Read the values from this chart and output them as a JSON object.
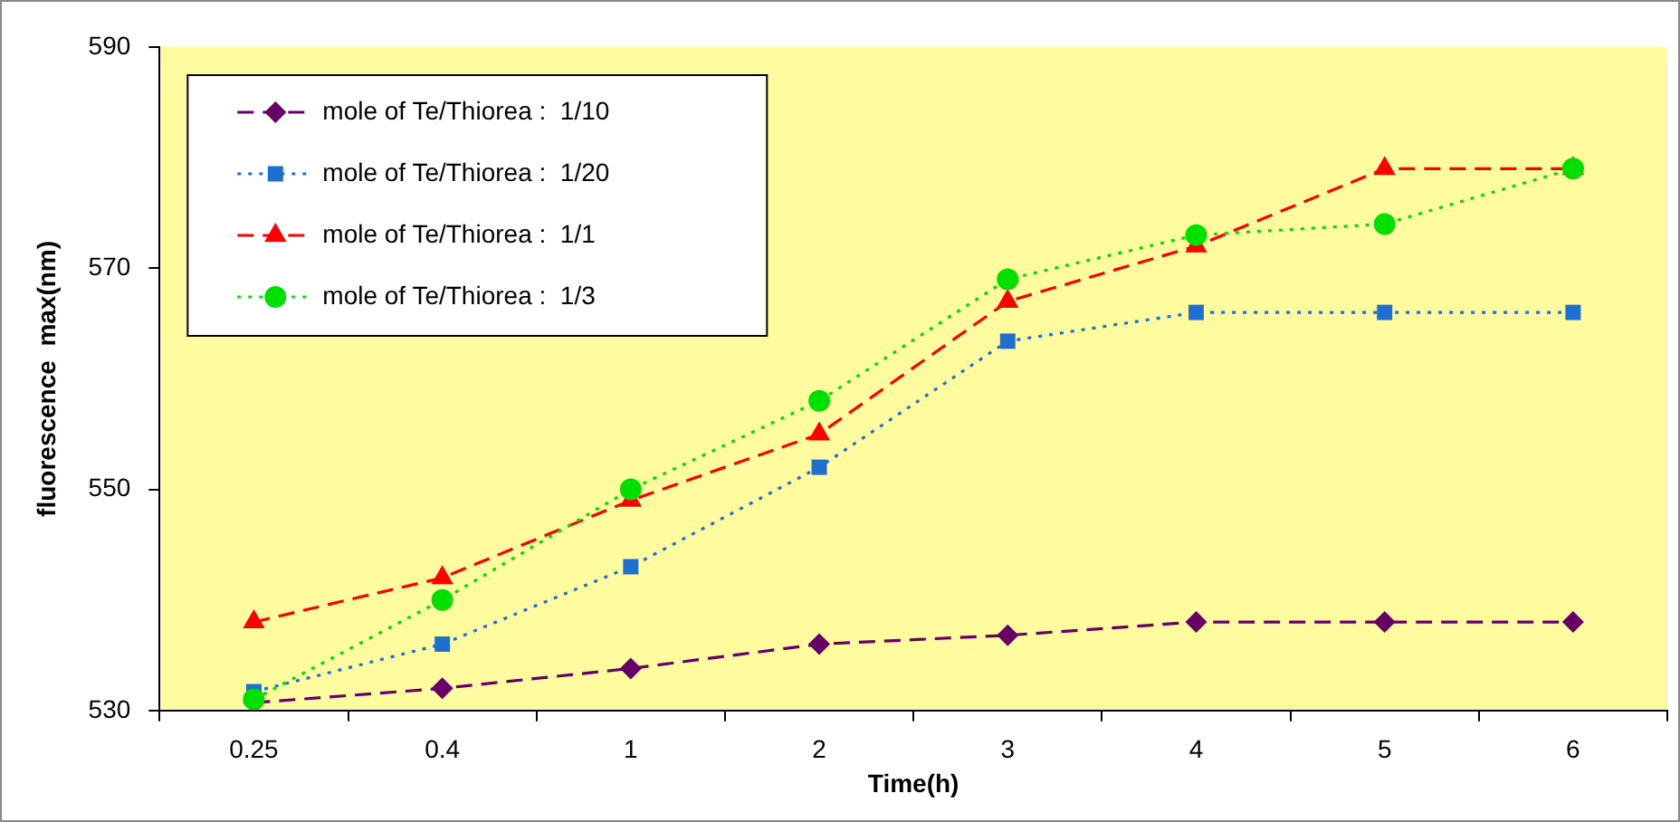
{
  "chart_data": {
    "type": "line",
    "xlabel": "Time(h)",
    "ylabel": "fluorescence  max(nm)",
    "categories": [
      "0.25",
      "0.4",
      "1",
      "2",
      "3",
      "4",
      "5",
      "6"
    ],
    "ylim": [
      530,
      590
    ],
    "yticks": [
      530,
      550,
      570,
      590
    ],
    "grid": false,
    "legend": "top left",
    "series": [
      {
        "name": "mole of Te/Thiorea :  1/10",
        "color": "#660066",
        "marker": "diamond",
        "line_style": "dashed",
        "values": [
          530.7,
          532,
          533.8,
          536,
          536.8,
          538,
          538,
          538
        ]
      },
      {
        "name": "mole of Te/Thiorea :  1/20",
        "color": "#1f6fd0",
        "marker": "square",
        "line_style": "dotted",
        "values": [
          531.7,
          536,
          543,
          552,
          563.4,
          566,
          566,
          566
        ]
      },
      {
        "name": "mole of Te/Thiorea :  1/1",
        "color": "#ff0000",
        "marker": "triangle",
        "line_style": "dashed",
        "values": [
          538,
          542,
          549,
          555,
          567,
          572,
          579,
          579
        ]
      },
      {
        "name": "mole of Te/Thiorea :  1/3",
        "color": "#00e000",
        "marker": "circle",
        "line_style": "dotted",
        "values": [
          531,
          540,
          550,
          558,
          569,
          573,
          574,
          579
        ]
      }
    ]
  }
}
